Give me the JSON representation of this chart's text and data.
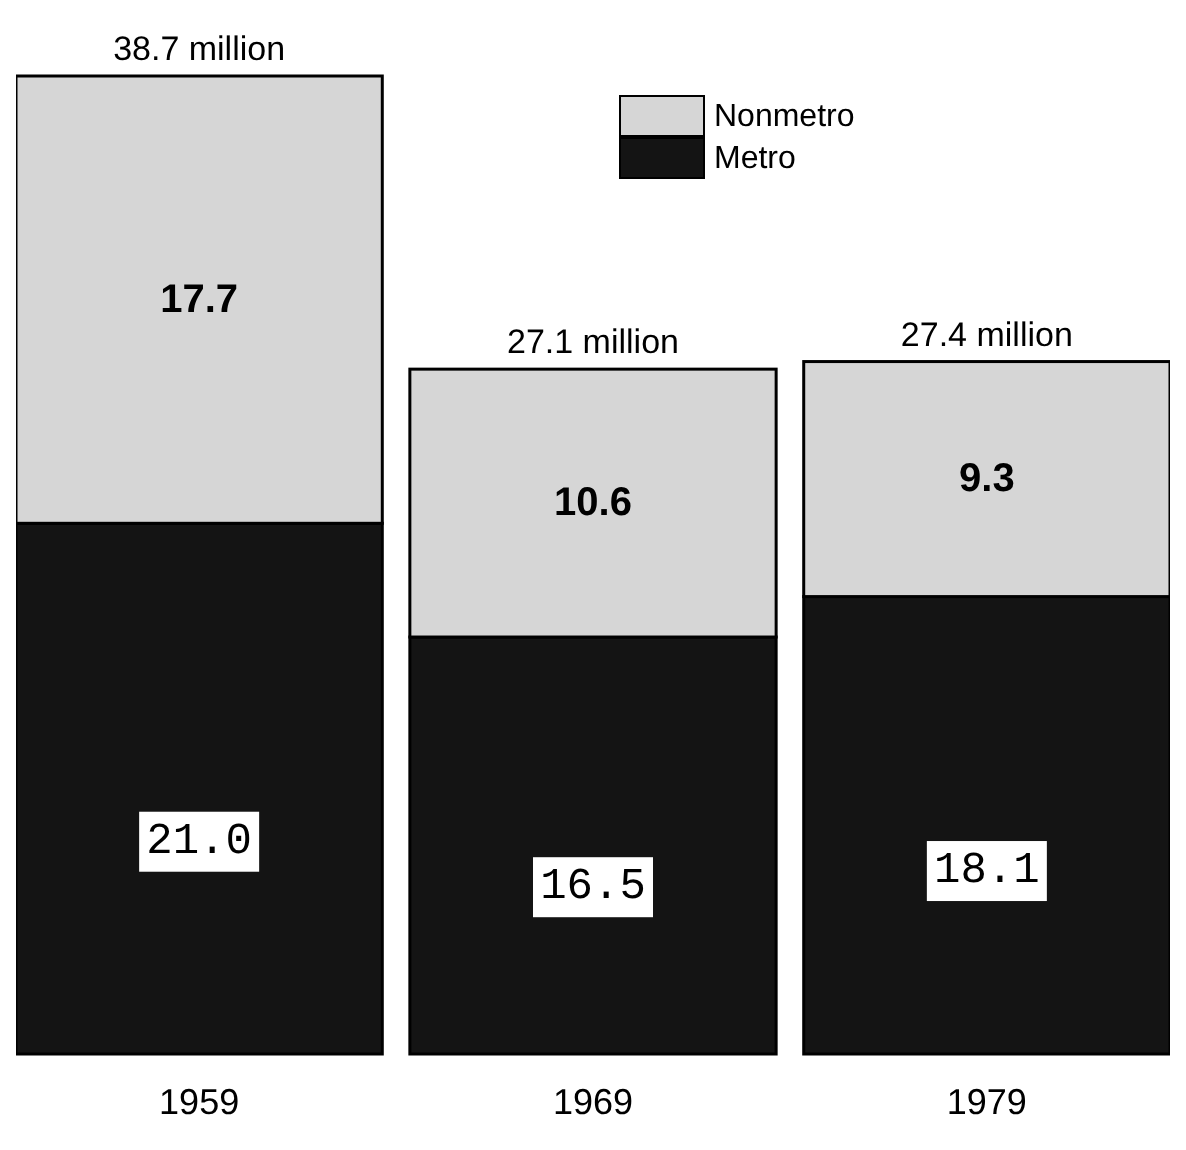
{
  "chart_data": {
    "type": "bar",
    "stacked": true,
    "categories": [
      "1959",
      "1969",
      "1979"
    ],
    "series": [
      {
        "name": "Metro",
        "color": "#141414",
        "values": [
          21.0,
          16.5,
          18.1
        ],
        "value_labels": [
          "21.0",
          "16.5",
          "18.1"
        ]
      },
      {
        "name": "Nonmetro",
        "color": "#d6d6d6",
        "values": [
          17.7,
          10.6,
          9.3
        ],
        "value_labels": [
          "17.7",
          "10.6",
          "9.3"
        ]
      }
    ],
    "totals": [
      "38.7 million",
      "27.1 million",
      "27.4 million"
    ],
    "legend": "top right"
  }
}
